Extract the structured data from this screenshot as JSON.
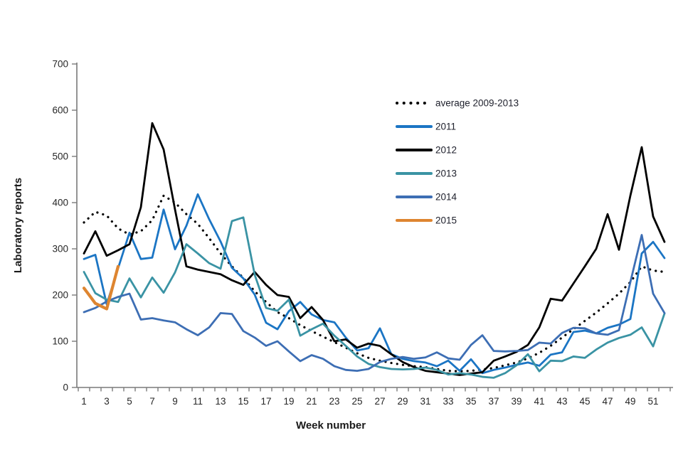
{
  "figure": {
    "background": "#ffffff",
    "axis_color": "#7a7a7a",
    "text_color": "#262626"
  },
  "chart_data": {
    "type": "line",
    "title": "",
    "xlabel": "Week number",
    "ylabel": "Laboratory reports",
    "grid": false,
    "legend_position": "center-upper",
    "x_axis": {
      "min": 1,
      "max": 52,
      "tick_labels": [
        1,
        3,
        5,
        7,
        9,
        11,
        13,
        15,
        17,
        19,
        21,
        23,
        25,
        27,
        29,
        31,
        33,
        35,
        37,
        39,
        41,
        43,
        45,
        47,
        49,
        51
      ]
    },
    "y_axis": {
      "min": 0,
      "max": 700,
      "tick_step": 100,
      "ticks": [
        0,
        100,
        200,
        300,
        400,
        500,
        600,
        700
      ]
    },
    "series": [
      {
        "name": "average 2009-2013",
        "color": "#000000",
        "style": "dotted",
        "line_width": 3.2,
        "start_week": 1,
        "values": [
          357,
          380,
          372,
          344,
          331,
          338,
          362,
          415,
          400,
          375,
          354,
          323,
          290,
          262,
          237,
          208,
          185,
          163,
          150,
          135,
          122,
          110,
          98,
          86,
          74,
          64,
          58,
          53,
          49,
          46,
          44,
          40,
          36,
          35,
          36,
          39,
          42,
          48,
          54,
          63,
          75,
          90,
          108,
          126,
          144,
          162,
          182,
          203,
          228,
          262,
          253,
          250
        ]
      },
      {
        "name": "2011",
        "color": "#1B75C4",
        "style": "solid",
        "line_width": 2.8,
        "start_week": 1,
        "values": [
          278,
          287,
          180,
          258,
          335,
          278,
          281,
          385,
          299,
          350,
          418,
          364,
          316,
          259,
          236,
          201,
          140,
          126,
          165,
          185,
          158,
          146,
          141,
          108,
          80,
          85,
          128,
          72,
          62,
          57,
          54,
          46,
          58,
          36,
          61,
          31,
          38,
          43,
          49,
          54,
          47,
          71,
          76,
          120,
          123,
          117,
          129,
          136,
          148,
          290,
          315,
          280
        ]
      },
      {
        "name": "2012",
        "color": "#000000",
        "style": "solid",
        "line_width": 2.8,
        "start_week": 1,
        "values": [
          290,
          338,
          285,
          297,
          310,
          390,
          572,
          515,
          385,
          262,
          255,
          250,
          245,
          232,
          222,
          250,
          222,
          200,
          196,
          150,
          174,
          146,
          100,
          104,
          86,
          95,
          90,
          72,
          55,
          44,
          36,
          33,
          30,
          27,
          30,
          33,
          58,
          67,
          77,
          92,
          130,
          192,
          188,
          225,
          262,
          300,
          375,
          298,
          415,
          520,
          370,
          315
        ]
      },
      {
        "name": "2013",
        "color": "#3A93A4",
        "style": "solid",
        "line_width": 2.8,
        "start_week": 1,
        "values": [
          250,
          204,
          190,
          185,
          236,
          195,
          238,
          205,
          249,
          310,
          290,
          269,
          257,
          360,
          368,
          244,
          172,
          166,
          190,
          112,
          126,
          138,
          112,
          90,
          67,
          51,
          44,
          40,
          39,
          40,
          43,
          38,
          28,
          31,
          28,
          23,
          21,
          31,
          48,
          72,
          35,
          58,
          57,
          67,
          64,
          82,
          97,
          107,
          114,
          130,
          89,
          160
        ]
      },
      {
        "name": "2014",
        "color": "#3D6EB4",
        "style": "solid",
        "line_width": 2.8,
        "start_week": 1,
        "values": [
          163,
          172,
          186,
          196,
          203,
          147,
          150,
          145,
          141,
          126,
          113,
          130,
          161,
          159,
          122,
          108,
          90,
          100,
          78,
          57,
          70,
          62,
          46,
          38,
          36,
          40,
          55,
          62,
          66,
          62,
          65,
          76,
          63,
          60,
          92,
          113,
          79,
          78,
          79,
          81,
          97,
          95,
          118,
          129,
          128,
          117,
          114,
          124,
          228,
          330,
          203,
          161
        ]
      },
      {
        "name": "2015",
        "color": "#DE8530",
        "style": "solid",
        "line_width": 4.2,
        "start_week": 1,
        "values": [
          215,
          182,
          170,
          262
        ]
      }
    ]
  }
}
